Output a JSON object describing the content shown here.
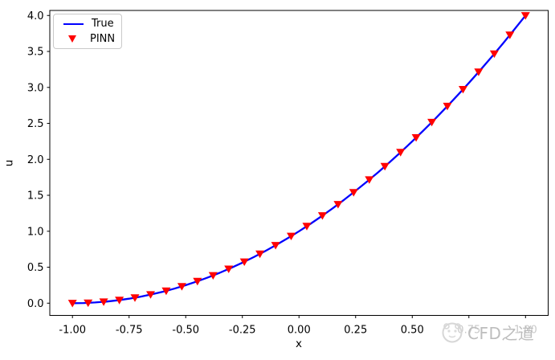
{
  "watermark": {
    "text": "CFD之道",
    "logo": "cfd-logo-icon",
    "text_color": "#bdbdbd"
  },
  "chart_data": {
    "type": "line",
    "title": "",
    "xlabel": "x",
    "ylabel": "u",
    "xlim": [
      -1.1,
      1.1
    ],
    "ylim": [
      -0.17,
      4.07
    ],
    "grid": false,
    "frame_color": "#000000",
    "xticks": {
      "values": [
        -1.0,
        -0.75,
        -0.5,
        -0.25,
        0.0,
        0.25,
        0.5,
        0.75,
        1.0
      ],
      "labels": [
        "-1.00",
        "-0.75",
        "-0.50",
        "-0.25",
        "0.00",
        "0.25",
        "0.50",
        "0.75",
        "1.00"
      ]
    },
    "yticks": {
      "values": [
        0.0,
        0.5,
        1.0,
        1.5,
        2.0,
        2.5,
        3.0,
        3.5,
        4.0
      ],
      "labels": [
        "0.0",
        "0.5",
        "1.0",
        "1.5",
        "2.0",
        "2.5",
        "3.0",
        "3.5",
        "4.0"
      ]
    },
    "legend": {
      "position": "upper left",
      "entries": [
        {
          "label": "True",
          "type": "line",
          "color": "#0000ff"
        },
        {
          "label": "PINN",
          "type": "triangle-down",
          "color": "#ff0000"
        }
      ]
    },
    "series": [
      {
        "name": "True",
        "type": "line",
        "color": "#0000ff",
        "x": [
          -1.0,
          -0.95,
          -0.9,
          -0.85,
          -0.8,
          -0.75,
          -0.7,
          -0.65,
          -0.6,
          -0.55,
          -0.5,
          -0.45,
          -0.4,
          -0.35,
          -0.3,
          -0.25,
          -0.2,
          -0.15,
          -0.1,
          -0.05,
          0.0,
          0.05,
          0.1,
          0.15,
          0.2,
          0.25,
          0.3,
          0.35,
          0.4,
          0.45,
          0.5,
          0.55,
          0.6,
          0.65,
          0.7,
          0.75,
          0.8,
          0.85,
          0.9,
          0.95,
          1.0
        ],
        "y": [
          0.0,
          0.0025,
          0.01,
          0.0225,
          0.04,
          0.0625,
          0.09,
          0.1225,
          0.16,
          0.2025,
          0.25,
          0.3025,
          0.36,
          0.4225,
          0.49,
          0.5625,
          0.64,
          0.7225,
          0.81,
          0.9025,
          1.0,
          1.1025,
          1.21,
          1.3225,
          1.44,
          1.5625,
          1.69,
          1.8225,
          1.96,
          2.1025,
          2.25,
          2.4025,
          2.56,
          2.7225,
          2.89,
          3.0625,
          3.24,
          3.4225,
          3.61,
          3.8025,
          4.0
        ]
      },
      {
        "name": "PINN",
        "type": "scatter",
        "marker": "triangle-down",
        "color": "#ff0000",
        "x": [
          -1.0,
          -0.931,
          -0.8621,
          -0.7931,
          -0.7241,
          -0.6552,
          -0.5862,
          -0.5172,
          -0.4483,
          -0.3793,
          -0.3103,
          -0.2414,
          -0.1724,
          -0.1034,
          -0.0345,
          0.0345,
          0.1034,
          0.1724,
          0.2414,
          0.3103,
          0.3793,
          0.4483,
          0.5172,
          0.5862,
          0.6552,
          0.7241,
          0.7931,
          0.8621,
          0.931,
          1.0
        ],
        "y": [
          0.0,
          0.0048,
          0.019,
          0.0428,
          0.0761,
          0.1189,
          0.1712,
          0.2331,
          0.3044,
          0.3853,
          0.4756,
          0.5755,
          0.6849,
          0.8038,
          0.9322,
          1.0702,
          1.2176,
          1.3746,
          1.541,
          1.717,
          1.9025,
          2.0975,
          2.302,
          2.5161,
          2.7396,
          2.9727,
          3.2152,
          3.4673,
          3.7289,
          4.0
        ]
      }
    ]
  }
}
